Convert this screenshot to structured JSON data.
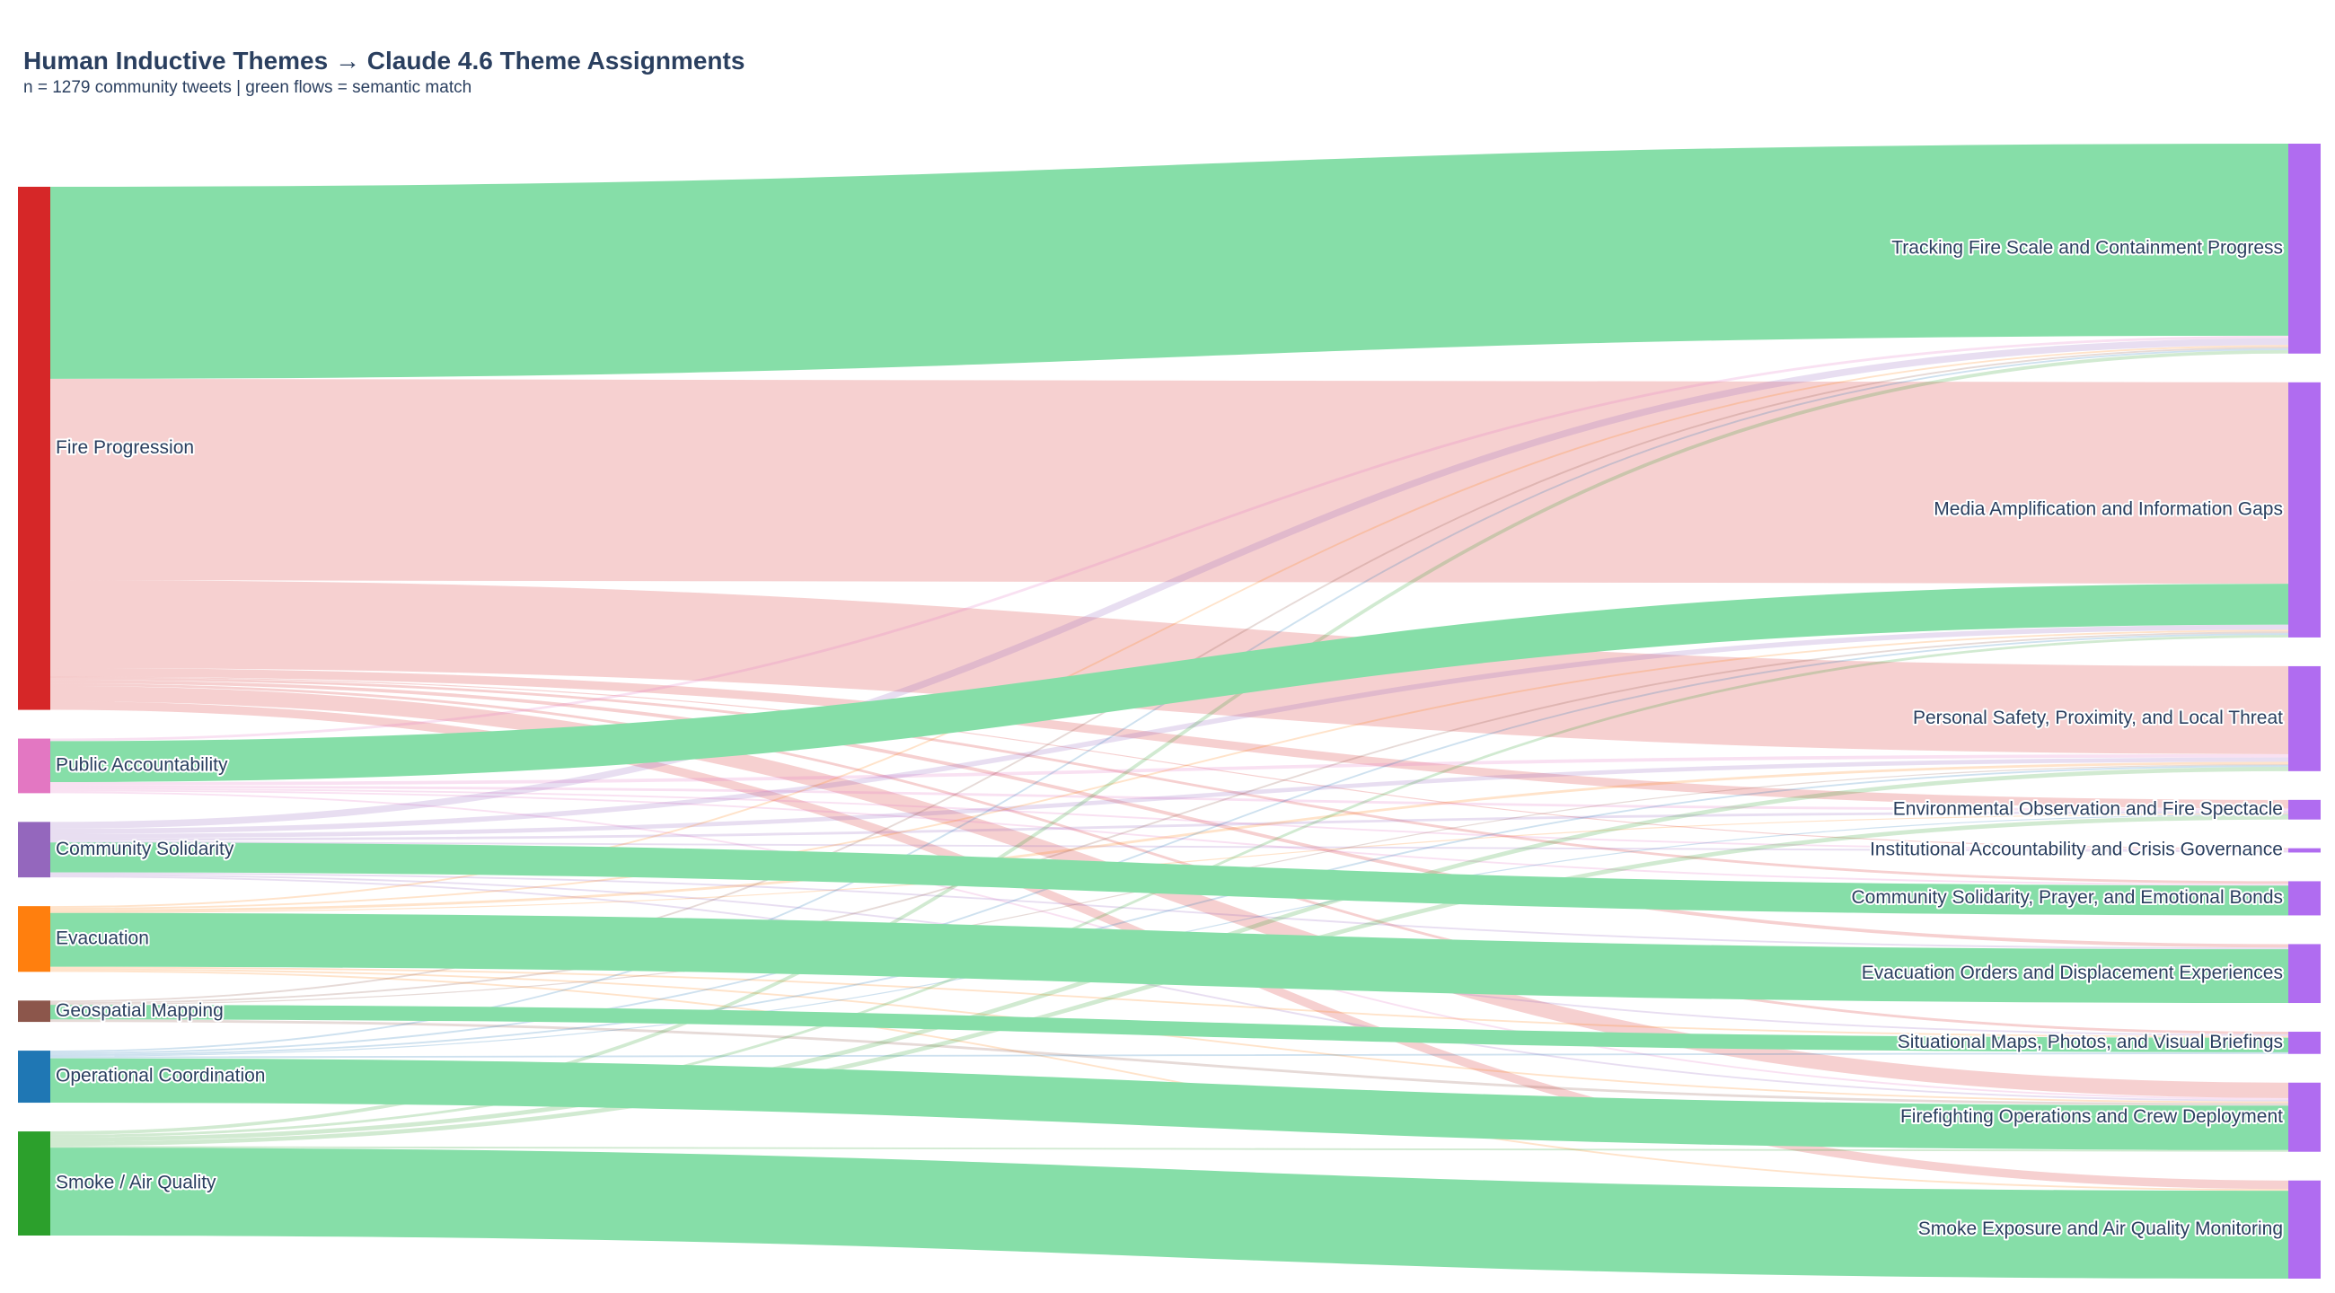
{
  "chart_data": {
    "type": "sankey",
    "title": "Human Inductive Themes → Claude 4.6 Theme Assignments",
    "subtitle": "n = 1279 community tweets  |  green flows = semantic match",
    "match_color": "#86dea8",
    "target_color": "#b06cf0",
    "sources": [
      {
        "name": "Fire Progression",
        "color": "#d62728"
      },
      {
        "name": "Public Accountability",
        "color": "#e377c2"
      },
      {
        "name": "Community Solidarity",
        "color": "#9467bd"
      },
      {
        "name": "Evacuation",
        "color": "#ff7f0e"
      },
      {
        "name": "Geospatial Mapping",
        "color": "#8c564b"
      },
      {
        "name": "Operational Coordination",
        "color": "#1f77b4"
      },
      {
        "name": "Smoke / Air Quality",
        "color": "#2ca02c"
      }
    ],
    "targets": [
      "Tracking Fire Scale and Containment Progress",
      "Media Amplification and Information Gaps",
      "Personal Safety, Proximity, and Local Threat",
      "Environmental Observation and Fire Spectacle",
      "Institutional Accountability and Crisis Governance",
      "Community Solidarity, Prayer, and Emotional Bonds",
      "Evacuation Orders and Displacement Experiences",
      "Situational Maps, Photos, and Visual Briefings",
      "Firefighting Operations and Crew Deployment",
      "Smoke Exposure and Air Quality Monitoring"
    ],
    "links": [
      {
        "source": 0,
        "target": 0,
        "value": 225,
        "match": true
      },
      {
        "source": 0,
        "target": 1,
        "value": 236,
        "match": false
      },
      {
        "source": 0,
        "target": 2,
        "value": 103,
        "match": false
      },
      {
        "source": 0,
        "target": 3,
        "value": 10,
        "match": false
      },
      {
        "source": 0,
        "target": 4,
        "value": 1,
        "match": false
      },
      {
        "source": 0,
        "target": 5,
        "value": 3,
        "match": false
      },
      {
        "source": 0,
        "target": 6,
        "value": 4,
        "match": false
      },
      {
        "source": 0,
        "target": 7,
        "value": 3,
        "match": false
      },
      {
        "source": 0,
        "target": 8,
        "value": 18,
        "match": false
      },
      {
        "source": 0,
        "target": 9,
        "value": 10,
        "match": false
      },
      {
        "source": 1,
        "target": 0,
        "value": 3,
        "match": false
      },
      {
        "source": 1,
        "target": 1,
        "value": 48,
        "match": true
      },
      {
        "source": 1,
        "target": 2,
        "value": 4,
        "match": false
      },
      {
        "source": 1,
        "target": 3,
        "value": 3,
        "match": false
      },
      {
        "source": 1,
        "target": 4,
        "value": 2,
        "match": false
      },
      {
        "source": 1,
        "target": 5,
        "value": 2,
        "match": false
      },
      {
        "source": 1,
        "target": 8,
        "value": 2,
        "match": false
      },
      {
        "source": 2,
        "target": 0,
        "value": 8,
        "match": false
      },
      {
        "source": 2,
        "target": 1,
        "value": 6,
        "match": false
      },
      {
        "source": 2,
        "target": 2,
        "value": 5,
        "match": false
      },
      {
        "source": 2,
        "target": 3,
        "value": 3,
        "match": false
      },
      {
        "source": 2,
        "target": 4,
        "value": 2,
        "match": false
      },
      {
        "source": 2,
        "target": 5,
        "value": 35,
        "match": true
      },
      {
        "source": 2,
        "target": 6,
        "value": 2,
        "match": false
      },
      {
        "source": 2,
        "target": 7,
        "value": 2,
        "match": false
      },
      {
        "source": 2,
        "target": 8,
        "value": 2,
        "match": false
      },
      {
        "source": 3,
        "target": 0,
        "value": 2,
        "match": false
      },
      {
        "source": 3,
        "target": 1,
        "value": 2,
        "match": false
      },
      {
        "source": 3,
        "target": 2,
        "value": 3,
        "match": false
      },
      {
        "source": 3,
        "target": 3,
        "value": 1,
        "match": false
      },
      {
        "source": 3,
        "target": 6,
        "value": 63,
        "match": true
      },
      {
        "source": 3,
        "target": 7,
        "value": 2,
        "match": false
      },
      {
        "source": 3,
        "target": 8,
        "value": 2,
        "match": false
      },
      {
        "source": 3,
        "target": 9,
        "value": 2,
        "match": false
      },
      {
        "source": 4,
        "target": 0,
        "value": 2,
        "match": false
      },
      {
        "source": 4,
        "target": 1,
        "value": 2,
        "match": false
      },
      {
        "source": 4,
        "target": 2,
        "value": 1,
        "match": false
      },
      {
        "source": 4,
        "target": 7,
        "value": 17,
        "match": true
      },
      {
        "source": 4,
        "target": 8,
        "value": 3,
        "match": false
      },
      {
        "source": 5,
        "target": 0,
        "value": 2,
        "match": false
      },
      {
        "source": 5,
        "target": 1,
        "value": 2,
        "match": false
      },
      {
        "source": 5,
        "target": 2,
        "value": 2,
        "match": false
      },
      {
        "source": 5,
        "target": 3,
        "value": 1,
        "match": false
      },
      {
        "source": 5,
        "target": 7,
        "value": 2,
        "match": false
      },
      {
        "source": 5,
        "target": 8,
        "value": 52,
        "match": true
      },
      {
        "source": 6,
        "target": 0,
        "value": 4,
        "match": false
      },
      {
        "source": 6,
        "target": 1,
        "value": 3,
        "match": false
      },
      {
        "source": 6,
        "target": 2,
        "value": 5,
        "match": false
      },
      {
        "source": 6,
        "target": 3,
        "value": 5,
        "match": false
      },
      {
        "source": 6,
        "target": 8,
        "value": 2,
        "match": false
      },
      {
        "source": 6,
        "target": 9,
        "value": 103,
        "match": true
      }
    ]
  }
}
